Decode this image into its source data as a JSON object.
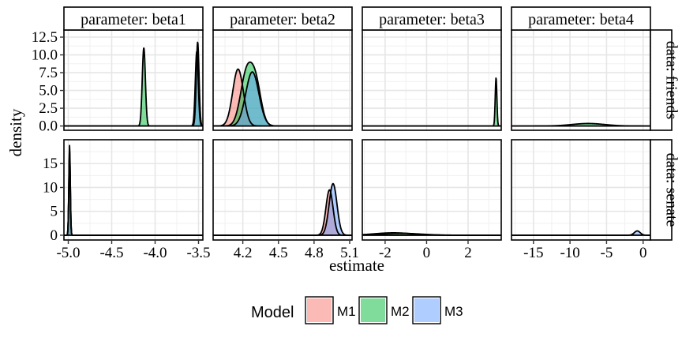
{
  "chart_data": {
    "type": "area",
    "xlabel": "estimate",
    "ylabel": "density",
    "columns": [
      {
        "strip": "parameter: beta1",
        "xlim": [
          -5.05,
          -3.45
        ],
        "ticks": [
          -5.0,
          -4.5,
          -4.0,
          -3.5
        ],
        "tick_labels": [
          "-5.0",
          "-4.5",
          "-4.0",
          "-3.5"
        ]
      },
      {
        "strip": "parameter: beta2",
        "xlim": [
          3.95,
          5.12
        ],
        "ticks": [
          4.2,
          4.5,
          4.8,
          5.1
        ],
        "tick_labels": [
          "4.2",
          "4.5",
          "4.8",
          "5.1"
        ]
      },
      {
        "strip": "parameter: beta3",
        "xlim": [
          -3.1,
          3.6
        ],
        "ticks": [
          -2,
          0,
          2
        ],
        "tick_labels": [
          "-2",
          "0",
          "2"
        ]
      },
      {
        "strip": "parameter: beta4",
        "xlim": [
          -18,
          1
        ],
        "ticks": [
          -15,
          -10,
          -5,
          0
        ],
        "tick_labels": [
          "-15",
          "-10",
          "-5",
          "0"
        ]
      }
    ],
    "rows": [
      {
        "strip": "data: friends",
        "ylim": [
          -0.6,
          13.5
        ],
        "ticks": [
          0,
          2.5,
          5,
          7.5,
          10,
          12.5
        ],
        "tick_labels": [
          "0.0",
          "2.5",
          "5.0",
          "7.5",
          "10.0",
          "12.5"
        ]
      },
      {
        "strip": "data: senate",
        "ylim": [
          -1,
          20
        ],
        "ticks": [
          0,
          5,
          10,
          15
        ],
        "tick_labels": [
          "0",
          "5",
          "10",
          "15"
        ]
      }
    ],
    "legend": {
      "title": "Model",
      "position": "bottom",
      "items": [
        {
          "label": "M1",
          "color": "#F8766D"
        },
        {
          "label": "M2",
          "color": "#00BA38"
        },
        {
          "label": "M3",
          "color": "#619CFF"
        }
      ]
    },
    "grid": true,
    "fill_opacity": 0.5,
    "panels": [
      {
        "row": 0,
        "col": 0,
        "densities": [
          {
            "model": "M2",
            "peaks": [
              {
                "mean": -4.13,
                "sd": 0.018,
                "height": 11.0
              },
              {
                "mean": -3.52,
                "sd": 0.017,
                "height": 10.5
              }
            ]
          },
          {
            "model": "M3",
            "peaks": [
              {
                "mean": -3.51,
                "sd": 0.016,
                "height": 11.8
              }
            ]
          }
        ]
      },
      {
        "row": 0,
        "col": 1,
        "densities": [
          {
            "model": "M1",
            "peaks": [
              {
                "mean": 4.16,
                "sd": 0.045,
                "height": 8.0
              }
            ]
          },
          {
            "model": "M2",
            "peaks": [
              {
                "mean": 4.23,
                "sd": 0.05,
                "height": 7.2
              },
              {
                "mean": 4.31,
                "sd": 0.045,
                "height": 5.5
              }
            ]
          },
          {
            "model": "M3",
            "peaks": [
              {
                "mean": 4.28,
                "sd": 0.055,
                "height": 7.6
              }
            ]
          }
        ]
      },
      {
        "row": 0,
        "col": 2,
        "densities": [
          {
            "model": "M2",
            "peaks": [
              {
                "mean": 3.35,
                "sd": 0.04,
                "height": 6.8
              }
            ]
          }
        ]
      },
      {
        "row": 0,
        "col": 3,
        "densities": [
          {
            "model": "M2",
            "peaks": [
              {
                "mean": -7.5,
                "sd": 2.2,
                "height": 0.35
              }
            ]
          }
        ]
      },
      {
        "row": 1,
        "col": 0,
        "densities": [
          {
            "model": "M1",
            "peaks": [
              {
                "mean": -4.985,
                "sd": 0.0085,
                "height": 17.0
              }
            ]
          },
          {
            "model": "M2",
            "peaks": [
              {
                "mean": -4.985,
                "sd": 0.0085,
                "height": 17.5
              }
            ]
          },
          {
            "model": "M3",
            "peaks": [
              {
                "mean": -4.985,
                "sd": 0.0082,
                "height": 18.8
              }
            ]
          }
        ]
      },
      {
        "row": 1,
        "col": 1,
        "densities": [
          {
            "model": "M1",
            "peaks": [
              {
                "mean": 4.93,
                "sd": 0.03,
                "height": 9.5
              }
            ]
          },
          {
            "model": "M3",
            "peaks": [
              {
                "mean": 4.96,
                "sd": 0.033,
                "height": 10.8
              }
            ]
          }
        ]
      },
      {
        "row": 1,
        "col": 2,
        "densities": [
          {
            "model": "M1",
            "peaks": [
              {
                "mean": -1.6,
                "sd": 0.9,
                "height": 0.5
              }
            ]
          },
          {
            "model": "M2",
            "peaks": [
              {
                "mean": -1.3,
                "sd": 1.0,
                "height": 0.4
              }
            ]
          }
        ]
      },
      {
        "row": 1,
        "col": 3,
        "densities": [
          {
            "model": "M3",
            "peaks": [
              {
                "mean": -0.8,
                "sd": 0.4,
                "height": 0.9
              }
            ]
          }
        ]
      }
    ]
  }
}
